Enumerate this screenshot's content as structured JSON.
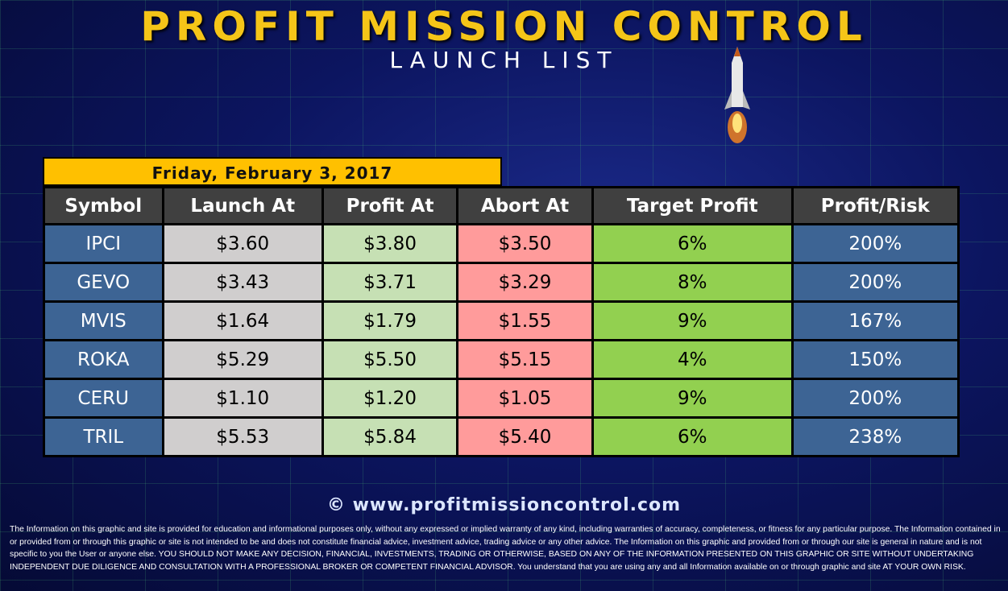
{
  "header": {
    "title": "Profit Mission Control",
    "subtitle": "Launch List"
  },
  "date": "Friday, February 3, 2017",
  "table": {
    "columns": [
      "Symbol",
      "Launch At",
      "Profit At",
      "Abort At",
      "Target Profit",
      "Profit/Risk"
    ],
    "rows": [
      [
        "IPCI",
        "$3.60",
        "$3.80",
        "$3.50",
        "6%",
        "200%"
      ],
      [
        "GEVO",
        "$3.43",
        "$3.71",
        "$3.29",
        "8%",
        "200%"
      ],
      [
        "MVIS",
        "$1.64",
        "$1.79",
        "$1.55",
        "9%",
        "167%"
      ],
      [
        "ROKA",
        "$5.29",
        "$5.50",
        "$5.15",
        "4%",
        "150%"
      ],
      [
        "CERU",
        "$1.10",
        "$1.20",
        "$1.05",
        "9%",
        "200%"
      ],
      [
        "TRIL",
        "$5.53",
        "$5.84",
        "$5.40",
        "6%",
        "238%"
      ]
    ]
  },
  "colors": {
    "symbol": "#3d6494",
    "launch": "#d0cece",
    "profit": "#c6e0b4",
    "abort": "#ff9b9b",
    "target": "#92d050",
    "date_bar": "#ffc000",
    "header": "#404040"
  },
  "footer": {
    "website": "© www.profitmissioncontrol.com",
    "disclaimer": "The Information on this graphic and site is provided for education and informational purposes only, without any expressed or implied warranty of any kind, including warranties of accuracy, completeness, or fitness for any particular purpose. The Information contained in or provided from or through this graphic or site is not intended to be and does not constitute financial advice, investment advice, trading advice or any other advice. The Information on this graphic and provided from or through our site is general in nature and is not specific to you the User or anyone else. YOU SHOULD NOT MAKE ANY DECISION, FINANCIAL, INVESTMENTS, TRADING OR OTHERWISE, BASED ON ANY OF THE INFORMATION PRESENTED ON THIS GRAPHIC OR SITE WITHOUT UNDERTAKING INDEPENDENT DUE DILIGENCE AND CONSULTATION WITH A PROFESSIONAL BROKER OR COMPETENT FINANCIAL ADVISOR. You understand that you are using any and all Information available on or through graphic and site AT YOUR OWN RISK."
  }
}
